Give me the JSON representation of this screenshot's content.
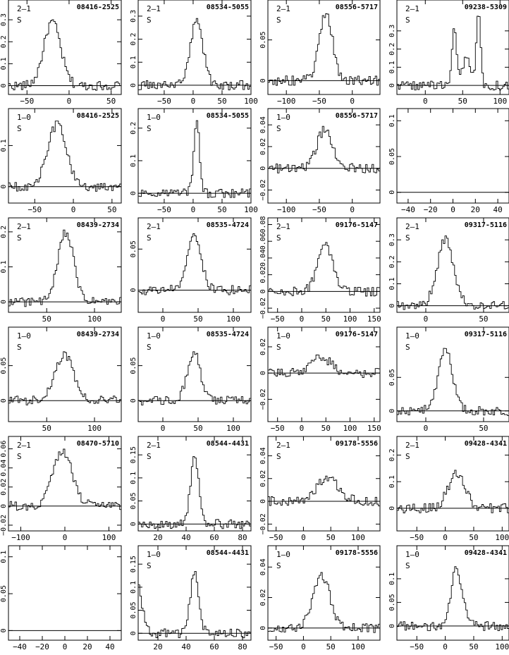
{
  "chart_data": [
    {
      "type": "line",
      "id": "08416-2525",
      "transition": "2–1",
      "flag": "S",
      "x_ticks": [
        -50,
        0,
        50
      ],
      "y_ticks": [
        "0",
        "0.1",
        "0.2",
        "0.3"
      ],
      "xlim": [
        -72,
        62
      ],
      "ylim": [
        -0.04,
        0.39
      ],
      "baseline": 0,
      "peaks": [
        [
          -20,
          0.29,
          10
        ]
      ]
    },
    {
      "type": "line",
      "id": "08534-5055",
      "transition": "2–1",
      "flag": "S",
      "x_ticks": [
        -50,
        0,
        50,
        100
      ],
      "y_ticks": [
        "0",
        "0.1",
        "0.2",
        "0.3"
      ],
      "xlim": [
        -95,
        100
      ],
      "ylim": [
        -0.04,
        0.37
      ],
      "baseline": 0,
      "peaks": [
        [
          6,
          0.28,
          11
        ]
      ]
    },
    {
      "type": "line",
      "id": "08556-5717",
      "transition": "2–1",
      "flag": "S",
      "x_ticks": [
        -100,
        -50,
        0
      ],
      "y_ticks": [
        "0",
        "0.05"
      ],
      "xlim": [
        -128,
        42
      ],
      "ylim": [
        -0.017,
        0.099
      ],
      "baseline": 0,
      "peaks": [
        [
          -40,
          0.083,
          10
        ]
      ]
    },
    {
      "type": "line",
      "id": "09238-5309",
      "transition": "2–1",
      "flag": "S",
      "x_ticks": [
        0,
        50,
        100
      ],
      "y_ticks": [
        "0",
        "0.1",
        "0.2",
        "0.3"
      ],
      "xlim": [
        -38,
        112
      ],
      "ylim": [
        -0.05,
        0.47
      ],
      "baseline": 0,
      "peaks": [
        [
          39,
          0.3,
          3
        ],
        [
          55,
          0.15,
          5
        ],
        [
          71,
          0.4,
          3
        ]
      ]
    },
    {
      "type": "line",
      "id": "08416-2525",
      "transition": "1–0",
      "flag": "S",
      "x_ticks": [
        -50,
        0,
        50
      ],
      "y_ticks": [
        "0",
        "0.1"
      ],
      "xlim": [
        -84,
        62
      ],
      "ylim": [
        -0.04,
        0.19
      ],
      "baseline": 0,
      "peaks": [
        [
          -21,
          0.15,
          12
        ]
      ]
    },
    {
      "type": "line",
      "id": "08534-5055",
      "transition": "1–0",
      "flag": "S",
      "x_ticks": [
        -50,
        0,
        50,
        100
      ],
      "y_ticks": [
        "0",
        "0.1",
        "0.2"
      ],
      "xlim": [
        -95,
        100
      ],
      "ylim": [
        -0.03,
        0.26
      ],
      "baseline": 0,
      "peaks": [
        [
          6,
          0.22,
          5
        ]
      ]
    },
    {
      "type": "line",
      "id": "08556-5717",
      "transition": "1–0",
      "flag": "S",
      "x_ticks": [
        -100,
        -50,
        0
      ],
      "y_ticks": [
        "−0.02",
        "0",
        "0.02",
        "0.04"
      ],
      "xlim": [
        -128,
        42
      ],
      "ylim": [
        -0.032,
        0.055
      ],
      "baseline": 0,
      "peaks": [
        [
          -42,
          0.035,
          12
        ]
      ]
    },
    {
      "type": "line",
      "id": "",
      "transition": "",
      "flag": "",
      "x_ticks": [
        -40,
        -20,
        0,
        20,
        40
      ],
      "y_ticks": [
        "0",
        "0.05",
        "0.1"
      ],
      "xlim": [
        -50,
        50
      ],
      "ylim": [
        -0.015,
        0.117
      ],
      "baseline": 0,
      "peaks": []
    },
    {
      "type": "line",
      "id": "08439-2734",
      "transition": "2–1",
      "flag": "S",
      "x_ticks": [
        50,
        100
      ],
      "y_ticks": [
        "0",
        "0.1",
        "0.2"
      ],
      "xlim": [
        10,
        128
      ],
      "ylim": [
        -0.03,
        0.24
      ],
      "baseline": 0,
      "peaks": [
        [
          70,
          0.2,
          8
        ]
      ]
    },
    {
      "type": "line",
      "id": "08535-4724",
      "transition": "2–1",
      "flag": "S",
      "x_ticks": [
        0,
        50,
        100
      ],
      "y_ticks": [
        "0",
        "0.05"
      ],
      "xlim": [
        -35,
        125
      ],
      "ylim": [
        -0.027,
        0.088
      ],
      "baseline": 0,
      "peaks": [
        [
          44,
          0.065,
          10
        ]
      ]
    },
    {
      "type": "line",
      "id": "09176-5147",
      "transition": "2–1",
      "flag": "S",
      "x_ticks": [
        -50,
        0,
        50,
        100,
        150
      ],
      "y_ticks": [
        "−0.02",
        "0",
        "0.02",
        "0.04",
        "0.06",
        "0.08"
      ],
      "xlim": [
        -70,
        162
      ],
      "ylim": [
        -0.025,
        0.088
      ],
      "baseline": 0,
      "peaks": [
        [
          48,
          0.058,
          15
        ]
      ]
    },
    {
      "type": "line",
      "id": "09317-5116",
      "transition": "2–1",
      "flag": "S",
      "x_ticks": [
        0,
        50
      ],
      "y_ticks": [
        "0",
        "0.1",
        "0.2",
        "0.3"
      ],
      "xlim": [
        -25,
        72
      ],
      "ylim": [
        -0.03,
        0.4
      ],
      "baseline": 0,
      "peaks": [
        [
          17,
          0.3,
          7
        ]
      ]
    },
    {
      "type": "line",
      "id": "08439-2734",
      "transition": "1–0",
      "flag": "S",
      "x_ticks": [
        50,
        100
      ],
      "y_ticks": [
        "0",
        "0.05"
      ],
      "xlim": [
        10,
        128
      ],
      "ylim": [
        -0.03,
        0.105
      ],
      "baseline": 0,
      "peaks": [
        [
          68,
          0.065,
          10
        ]
      ]
    },
    {
      "type": "line",
      "id": "08535-4724",
      "transition": "1–0",
      "flag": "S",
      "x_ticks": [
        0,
        50,
        100
      ],
      "y_ticks": [
        "0",
        "0.05"
      ],
      "xlim": [
        -35,
        125
      ],
      "ylim": [
        -0.03,
        0.105
      ],
      "baseline": 0,
      "peaks": [
        [
          44,
          0.07,
          9
        ]
      ]
    },
    {
      "type": "line",
      "id": "09176-5147",
      "transition": "1–0",
      "flag": "S",
      "x_ticks": [
        -50,
        0,
        50,
        100,
        150
      ],
      "y_ticks": [
        "−0.02",
        "0",
        "0.02"
      ],
      "xlim": [
        -70,
        162
      ],
      "ylim": [
        -0.037,
        0.035
      ],
      "baseline": 0,
      "peaks": [
        [
          40,
          0.012,
          20
        ]
      ]
    },
    {
      "type": "line",
      "id": "09317-5116",
      "transition": "1–0",
      "flag": "S",
      "x_ticks": [
        0,
        50
      ],
      "y_ticks": [
        "0",
        "0.05"
      ],
      "xlim": [
        -25,
        72
      ],
      "ylim": [
        -0.016,
        0.125
      ],
      "baseline": 0,
      "peaks": [
        [
          17,
          0.095,
          6
        ]
      ]
    },
    {
      "type": "line",
      "id": "08470-5710",
      "transition": "2–1",
      "flag": "S",
      "x_ticks": [
        -100,
        0,
        100
      ],
      "y_ticks": [
        "−0.02",
        "0",
        "0.02",
        "0.04",
        "0.06"
      ],
      "xlim": [
        -128,
        128
      ],
      "ylim": [
        -0.026,
        0.073
      ],
      "baseline": 0,
      "peaks": [
        [
          -5,
          0.058,
          22
        ]
      ]
    },
    {
      "type": "line",
      "id": "08544-4431",
      "transition": "2–1",
      "flag": "S",
      "x_ticks": [
        20,
        40,
        60,
        80
      ],
      "y_ticks": [
        "0",
        "0.05",
        "0.1",
        "0.15"
      ],
      "xlim": [
        6,
        86
      ],
      "ylim": [
        -0.015,
        0.19
      ],
      "baseline": 0,
      "peaks": [
        [
          46,
          0.145,
          3
        ]
      ]
    },
    {
      "type": "line",
      "id": "09178-5556",
      "transition": "2–1",
      "flag": "S",
      "x_ticks": [
        -50,
        0,
        50,
        100
      ],
      "y_ticks": [
        "−0.02",
        "0",
        "0.02",
        "0.04"
      ],
      "xlim": [
        -65,
        140
      ],
      "ylim": [
        -0.026,
        0.057
      ],
      "baseline": 0,
      "peaks": [
        [
          45,
          0.02,
          20
        ]
      ]
    },
    {
      "type": "line",
      "id": "09428-4341",
      "transition": "2–1",
      "flag": "S",
      "x_ticks": [
        -50,
        0,
        50,
        100
      ],
      "y_ticks": [
        "0",
        "0.1",
        "0.2"
      ],
      "xlim": [
        -85,
        112
      ],
      "ylim": [
        -0.085,
        0.27
      ],
      "baseline": 0,
      "peaks": [
        [
          20,
          0.13,
          15
        ]
      ]
    },
    {
      "type": "line",
      "id": "",
      "transition": "",
      "flag": "",
      "x_ticks": [
        -40,
        -20,
        0,
        20,
        40
      ],
      "y_ticks": [
        "0",
        "0.05",
        "0.1"
      ],
      "xlim": [
        -50,
        50
      ],
      "ylim": [
        -0.013,
        0.115
      ],
      "baseline": 0,
      "peaks": []
    },
    {
      "type": "line",
      "id": "08544-4431",
      "transition": "1–0",
      "flag": "S",
      "x_ticks": [
        20,
        40,
        60,
        80
      ],
      "y_ticks": [
        "0",
        "0.05",
        "0.1",
        "0.15"
      ],
      "xlim": [
        6,
        86
      ],
      "ylim": [
        -0.015,
        0.19
      ],
      "baseline": 0,
      "peaks": [
        [
          4,
          0.12,
          4
        ],
        [
          46,
          0.13,
          3
        ]
      ]
    },
    {
      "type": "line",
      "id": "09178-5556",
      "transition": "1–0",
      "flag": "S",
      "x_ticks": [
        -50,
        0,
        50,
        100
      ],
      "y_ticks": [
        "0",
        "0.02",
        "0.04"
      ],
      "xlim": [
        -65,
        140
      ],
      "ylim": [
        -0.008,
        0.054
      ],
      "baseline": 0,
      "peaks": [
        [
          33,
          0.035,
          15
        ]
      ]
    },
    {
      "type": "line",
      "id": "09428-4341",
      "transition": "1–0",
      "flag": "S",
      "x_ticks": [
        -50,
        0,
        50,
        100
      ],
      "y_ticks": [
        "0",
        "0.05",
        "0.1"
      ],
      "xlim": [
        -85,
        112
      ],
      "ylim": [
        -0.03,
        0.17
      ],
      "baseline": 0,
      "peaks": [
        [
          20,
          0.12,
          10
        ]
      ]
    }
  ]
}
